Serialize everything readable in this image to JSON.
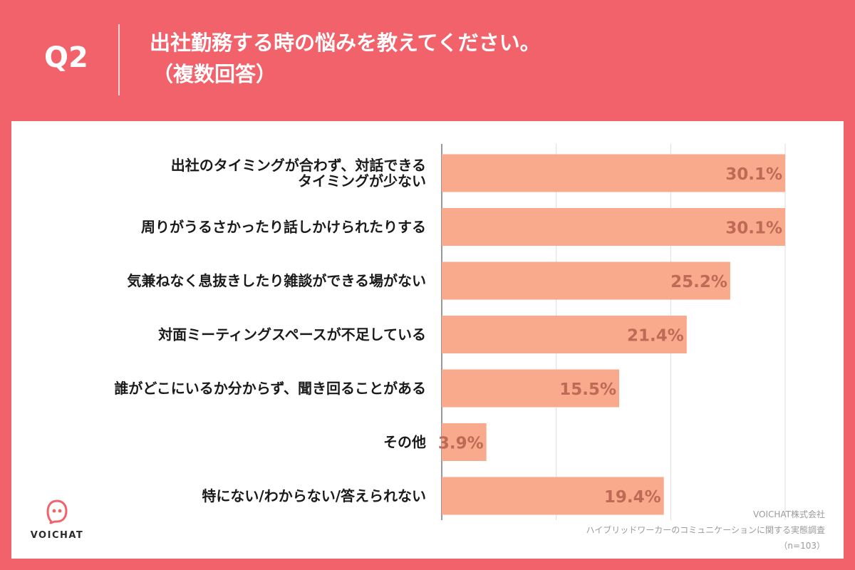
{
  "header": {
    "q_label": "Q2",
    "title_line1": "出社勤務する時の悩みを教えてください。",
    "title_line2": "（複数回答）"
  },
  "colors": {
    "background": "#f2626b",
    "bar": "#f9a98c",
    "value_label": "#bf6a56",
    "grid": "#dddddd"
  },
  "chart_data": {
    "type": "bar",
    "orientation": "horizontal",
    "title": "出社勤務する時の悩みを教えてください。（複数回答）",
    "categories": [
      [
        "出社のタイミングが合わず、対話できる",
        "タイミングが少ない"
      ],
      [
        "周りがうるさかったり話しかけられたりする"
      ],
      [
        "気兼ねなく息抜きしたり雑談ができる場がない"
      ],
      [
        "対面ミーティングスペースが不足している"
      ],
      [
        "誰がどこにいるか分からず、聞き回ることがある"
      ],
      [
        "その他"
      ],
      [
        "特にない/わからない/答えられない"
      ]
    ],
    "values": [
      30.1,
      30.1,
      25.2,
      21.4,
      15.5,
      3.9,
      19.4
    ],
    "value_labels": [
      "30.1%",
      "30.1%",
      "25.2%",
      "21.4%",
      "15.5%",
      "3.9%",
      "19.4%"
    ],
    "xlim": [
      0,
      30
    ],
    "gridlines": [
      0,
      10,
      20,
      30
    ],
    "xlabel": "",
    "ylabel": ""
  },
  "logo": {
    "text": "VOICHAT"
  },
  "footer": {
    "company": "VOICHAT株式会社",
    "survey": "ハイブリッドワーカーのコミュニケーションに関する実態調査",
    "sample": "（n=103）"
  }
}
